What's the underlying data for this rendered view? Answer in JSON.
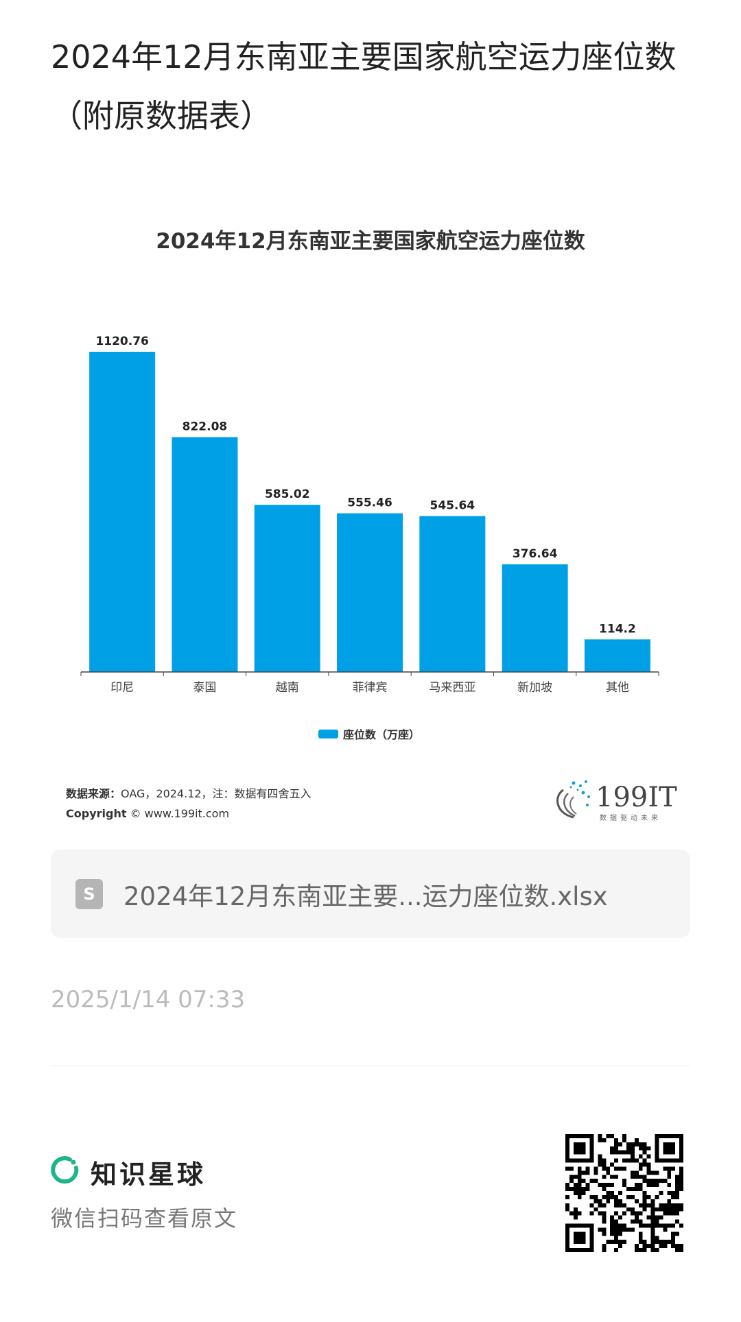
{
  "page": {
    "title": "2024年12月东南亚主要国家航空运力座位数（附原数据表）"
  },
  "chart_data": {
    "type": "bar",
    "title": "2024年12月东南亚主要国家航空运力座位数",
    "categories": [
      "印尼",
      "泰国",
      "越南",
      "菲律宾",
      "马来西亚",
      "新加坡",
      "其他"
    ],
    "series": [
      {
        "name": "座位数（万座）",
        "values": [
          1120.76,
          822.08,
          585.02,
          555.46,
          545.64,
          376.64,
          114.2
        ]
      }
    ],
    "data_labels": [
      "1120.76",
      "822.08",
      "585.02",
      "555.46",
      "545.64",
      "376.64",
      "114.2"
    ],
    "xlabel": "",
    "ylabel": "",
    "ylim": [
      0,
      1200
    ],
    "grid": false,
    "legend_position": "bottom",
    "bar_color": "#00a0e6"
  },
  "source": {
    "label": "数据来源：",
    "text": "OAG，2024.12，注：数据有四舍五入",
    "copyright_label": "Copyright",
    "copyright_text": "© www.199it.com"
  },
  "brand_logo": {
    "text": "199IT",
    "tagline": "数据驱动未来"
  },
  "attachment": {
    "icon": "spreadsheet-file-icon",
    "icon_letter": "S",
    "file_name": "2024年12月东南亚主要...运力座位数.xlsx"
  },
  "timestamp": "2025/1/14 07:33",
  "footer": {
    "brand": "知识星球",
    "scan_text": "微信扫码查看原文",
    "accent": "#1fb48c"
  }
}
